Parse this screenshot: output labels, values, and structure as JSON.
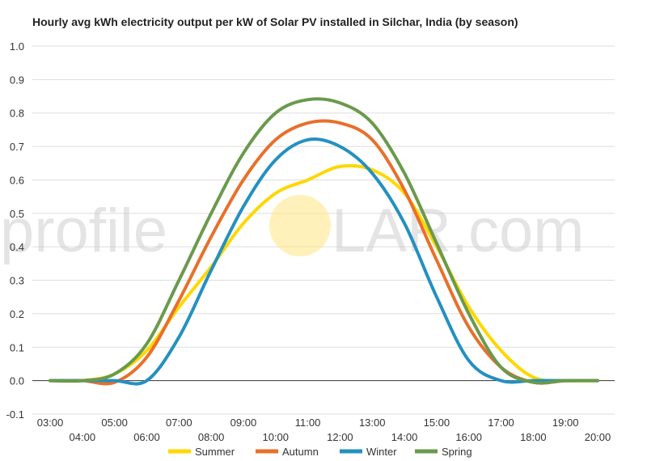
{
  "chart_data": {
    "type": "line",
    "title": "Hourly avg kWh electricity output per kW of Solar PV installed in Silchar, India (by season)",
    "xlabel": "",
    "ylabel": "",
    "ylim": [
      -0.1,
      1.0
    ],
    "yticks": [
      "-0.1",
      "0.0",
      "0.1",
      "0.2",
      "0.3",
      "0.4",
      "0.5",
      "0.6",
      "0.7",
      "0.8",
      "0.9",
      "1.0"
    ],
    "x": [
      "03:00",
      "04:00",
      "05:00",
      "06:00",
      "07:00",
      "08:00",
      "09:00",
      "10:00",
      "11:00",
      "12:00",
      "13:00",
      "14:00",
      "15:00",
      "16:00",
      "17:00",
      "18:00",
      "19:00",
      "20:00"
    ],
    "grid": true,
    "legend": "bottom",
    "series": [
      {
        "name": "Summer",
        "color": "#FFD700",
        "values": [
          0.0,
          0.0,
          0.02,
          0.09,
          0.22,
          0.34,
          0.47,
          0.56,
          0.6,
          0.64,
          0.63,
          0.56,
          0.4,
          0.22,
          0.09,
          0.01,
          0.0,
          0.0
        ]
      },
      {
        "name": "Autumn",
        "color": "#E8702A",
        "values": [
          0.0,
          0.0,
          -0.005,
          0.07,
          0.24,
          0.43,
          0.6,
          0.72,
          0.77,
          0.77,
          0.72,
          0.57,
          0.36,
          0.16,
          0.04,
          -0.005,
          0.0,
          0.0
        ]
      },
      {
        "name": "Winter",
        "color": "#2490C0",
        "values": [
          0.0,
          0.0,
          0.0,
          0.0,
          0.13,
          0.33,
          0.52,
          0.66,
          0.72,
          0.7,
          0.62,
          0.47,
          0.25,
          0.06,
          0.0,
          0.0,
          0.0,
          0.0
        ]
      },
      {
        "name": "Spring",
        "color": "#6A9A4C",
        "values": [
          0.0,
          0.0,
          0.02,
          0.11,
          0.3,
          0.5,
          0.68,
          0.8,
          0.84,
          0.83,
          0.77,
          0.62,
          0.41,
          0.2,
          0.04,
          -0.005,
          0.0,
          0.0
        ]
      }
    ]
  },
  "watermark": {
    "left_text": "profile",
    "right_text": "LAR.com",
    "sun_color": "#FFE680"
  }
}
